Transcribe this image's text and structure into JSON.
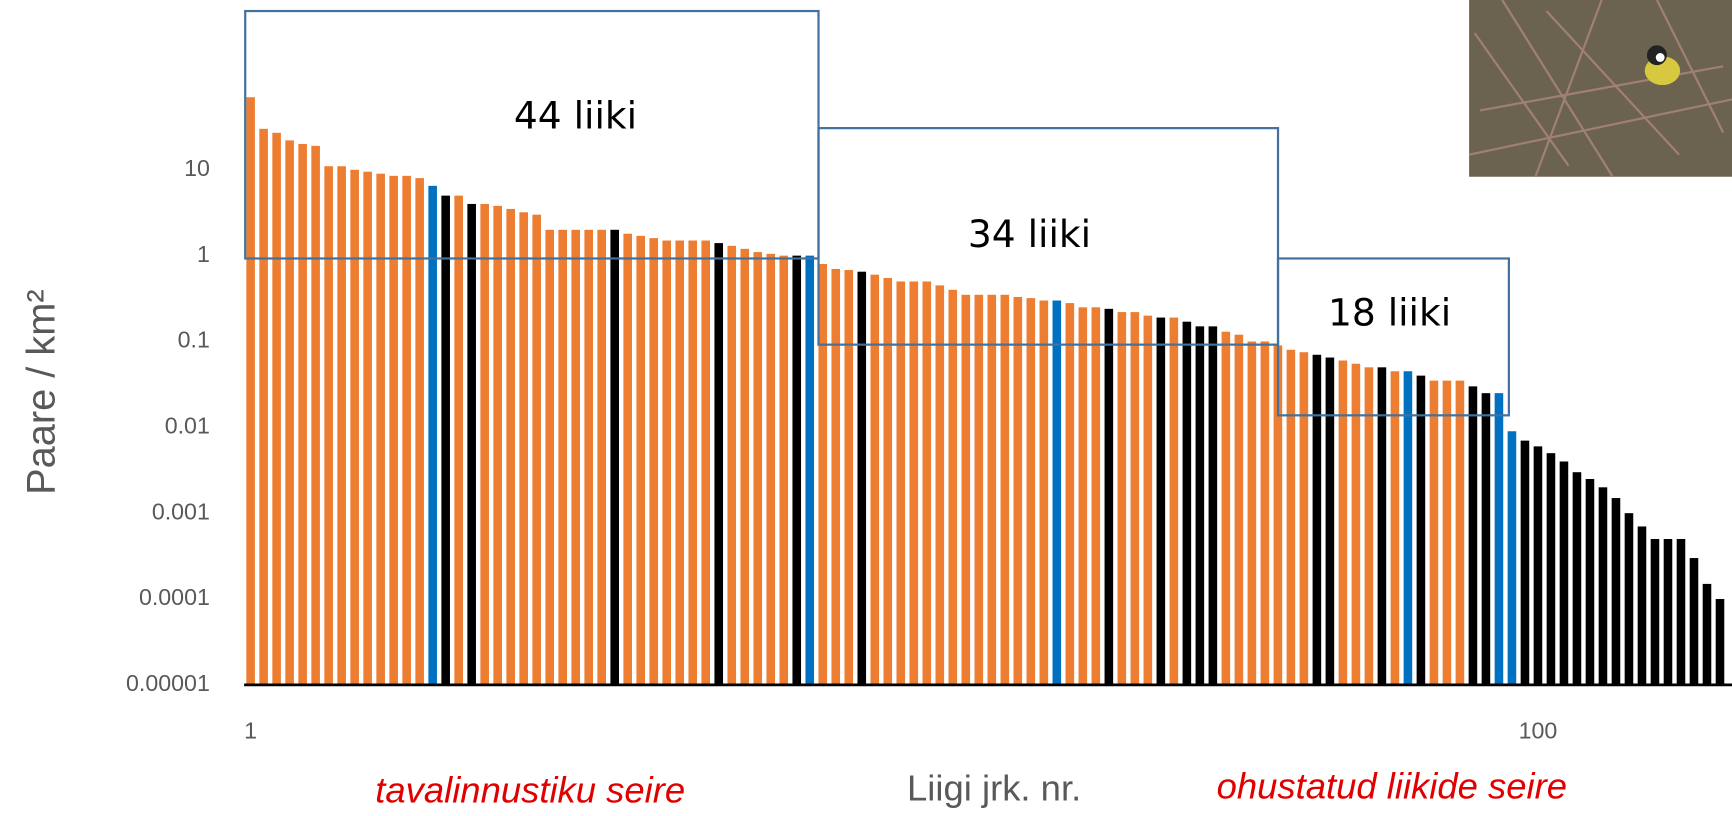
{
  "chart_data": {
    "type": "bar",
    "y_label": "Paare / km²",
    "x_label": "Liigi jrk. nr.",
    "annotations": [
      "tavalinnustiku seire",
      "ohustatud liikide seire"
    ],
    "boxes": [
      "44 liiki",
      "34 liiki",
      "18 liiki"
    ],
    "y_log": true,
    "ylim": [
      1e-05,
      100
    ],
    "yticks": [
      1e-05,
      0.0001,
      0.001,
      0.01,
      0.1,
      1,
      10
    ],
    "xlim": [
      0.5,
      114.5
    ],
    "xticks": [
      1,
      100
    ],
    "x": [
      1,
      2,
      3,
      4,
      5,
      6,
      7,
      8,
      9,
      10,
      11,
      12,
      13,
      14,
      15,
      16,
      17,
      18,
      19,
      20,
      21,
      22,
      23,
      24,
      25,
      26,
      27,
      28,
      29,
      30,
      31,
      32,
      33,
      34,
      35,
      36,
      37,
      38,
      39,
      40,
      41,
      42,
      43,
      44,
      45,
      46,
      47,
      48,
      49,
      50,
      51,
      52,
      53,
      54,
      55,
      56,
      57,
      58,
      59,
      60,
      61,
      62,
      63,
      64,
      65,
      66,
      67,
      68,
      69,
      70,
      71,
      72,
      73,
      74,
      75,
      76,
      77,
      78,
      79,
      80,
      81,
      82,
      83,
      84,
      85,
      86,
      87,
      88,
      89,
      90,
      91,
      92,
      93,
      94,
      95,
      96,
      97,
      98,
      99,
      100,
      101,
      102,
      103,
      104,
      105,
      106,
      107,
      108,
      109,
      110,
      111,
      112,
      113,
      114
    ],
    "values": [
      70,
      30,
      27,
      22,
      20,
      19,
      11,
      11,
      10,
      9.5,
      9,
      8.5,
      8.5,
      8,
      6.5,
      5,
      5,
      4,
      4,
      3.8,
      3.5,
      3.2,
      3,
      2,
      2,
      2,
      2,
      2,
      2,
      1.8,
      1.7,
      1.6,
      1.5,
      1.5,
      1.5,
      1.5,
      1.4,
      1.3,
      1.2,
      1.1,
      1.05,
      1,
      1,
      1,
      0.8,
      0.7,
      0.68,
      0.65,
      0.6,
      0.55,
      0.5,
      0.5,
      0.5,
      0.45,
      0.4,
      0.35,
      0.35,
      0.35,
      0.35,
      0.33,
      0.32,
      0.3,
      0.3,
      0.28,
      0.25,
      0.25,
      0.24,
      0.22,
      0.22,
      0.2,
      0.19,
      0.19,
      0.17,
      0.15,
      0.15,
      0.13,
      0.12,
      0.1,
      0.1,
      0.09,
      0.08,
      0.075,
      0.07,
      0.065,
      0.06,
      0.055,
      0.05,
      0.05,
      0.045,
      0.045,
      0.04,
      0.035,
      0.035,
      0.035,
      0.03,
      0.025,
      0.025,
      0.009,
      0.007,
      0.006,
      0.005,
      0.004,
      0.003,
      0.0025,
      0.002,
      0.0015,
      0.001,
      0.0007,
      0.0005,
      0.0005,
      0.0005,
      0.0003,
      0.00015,
      0.0001
    ],
    "colors": [
      "#ed7d31",
      "#ed7d31",
      "#ed7d31",
      "#ed7d31",
      "#ed7d31",
      "#ed7d31",
      "#ed7d31",
      "#ed7d31",
      "#ed7d31",
      "#ed7d31",
      "#ed7d31",
      "#ed7d31",
      "#ed7d31",
      "#ed7d31",
      "#0070c0",
      "#000000",
      "#ed7d31",
      "#000000",
      "#ed7d31",
      "#ed7d31",
      "#ed7d31",
      "#ed7d31",
      "#ed7d31",
      "#ed7d31",
      "#ed7d31",
      "#ed7d31",
      "#ed7d31",
      "#ed7d31",
      "#000000",
      "#ed7d31",
      "#ed7d31",
      "#ed7d31",
      "#ed7d31",
      "#ed7d31",
      "#ed7d31",
      "#ed7d31",
      "#000000",
      "#ed7d31",
      "#ed7d31",
      "#ed7d31",
      "#ed7d31",
      "#ed7d31",
      "#000000",
      "#0070c0",
      "#ed7d31",
      "#ed7d31",
      "#ed7d31",
      "#000000",
      "#ed7d31",
      "#ed7d31",
      "#ed7d31",
      "#ed7d31",
      "#ed7d31",
      "#ed7d31",
      "#ed7d31",
      "#ed7d31",
      "#ed7d31",
      "#ed7d31",
      "#ed7d31",
      "#ed7d31",
      "#ed7d31",
      "#ed7d31",
      "#0070c0",
      "#ed7d31",
      "#ed7d31",
      "#ed7d31",
      "#000000",
      "#ed7d31",
      "#ed7d31",
      "#ed7d31",
      "#000000",
      "#ed7d31",
      "#000000",
      "#000000",
      "#000000",
      "#ed7d31",
      "#ed7d31",
      "#ed7d31",
      "#ed7d31",
      "#ed7d31",
      "#ed7d31",
      "#ed7d31",
      "#000000",
      "#000000",
      "#ed7d31",
      "#ed7d31",
      "#ed7d31",
      "#000000",
      "#ed7d31",
      "#0070c0",
      "#000000",
      "#ed7d31",
      "#ed7d31",
      "#ed7d31",
      "#000000",
      "#000000",
      "#0070c0",
      "#0070c0",
      "#000000",
      "#000000",
      "#000000",
      "#000000",
      "#000000",
      "#000000",
      "#000000",
      "#000000",
      "#000000",
      "#000000",
      "#000000",
      "#000000",
      "#000000",
      "#000000",
      "#000000",
      "#000000"
    ]
  }
}
